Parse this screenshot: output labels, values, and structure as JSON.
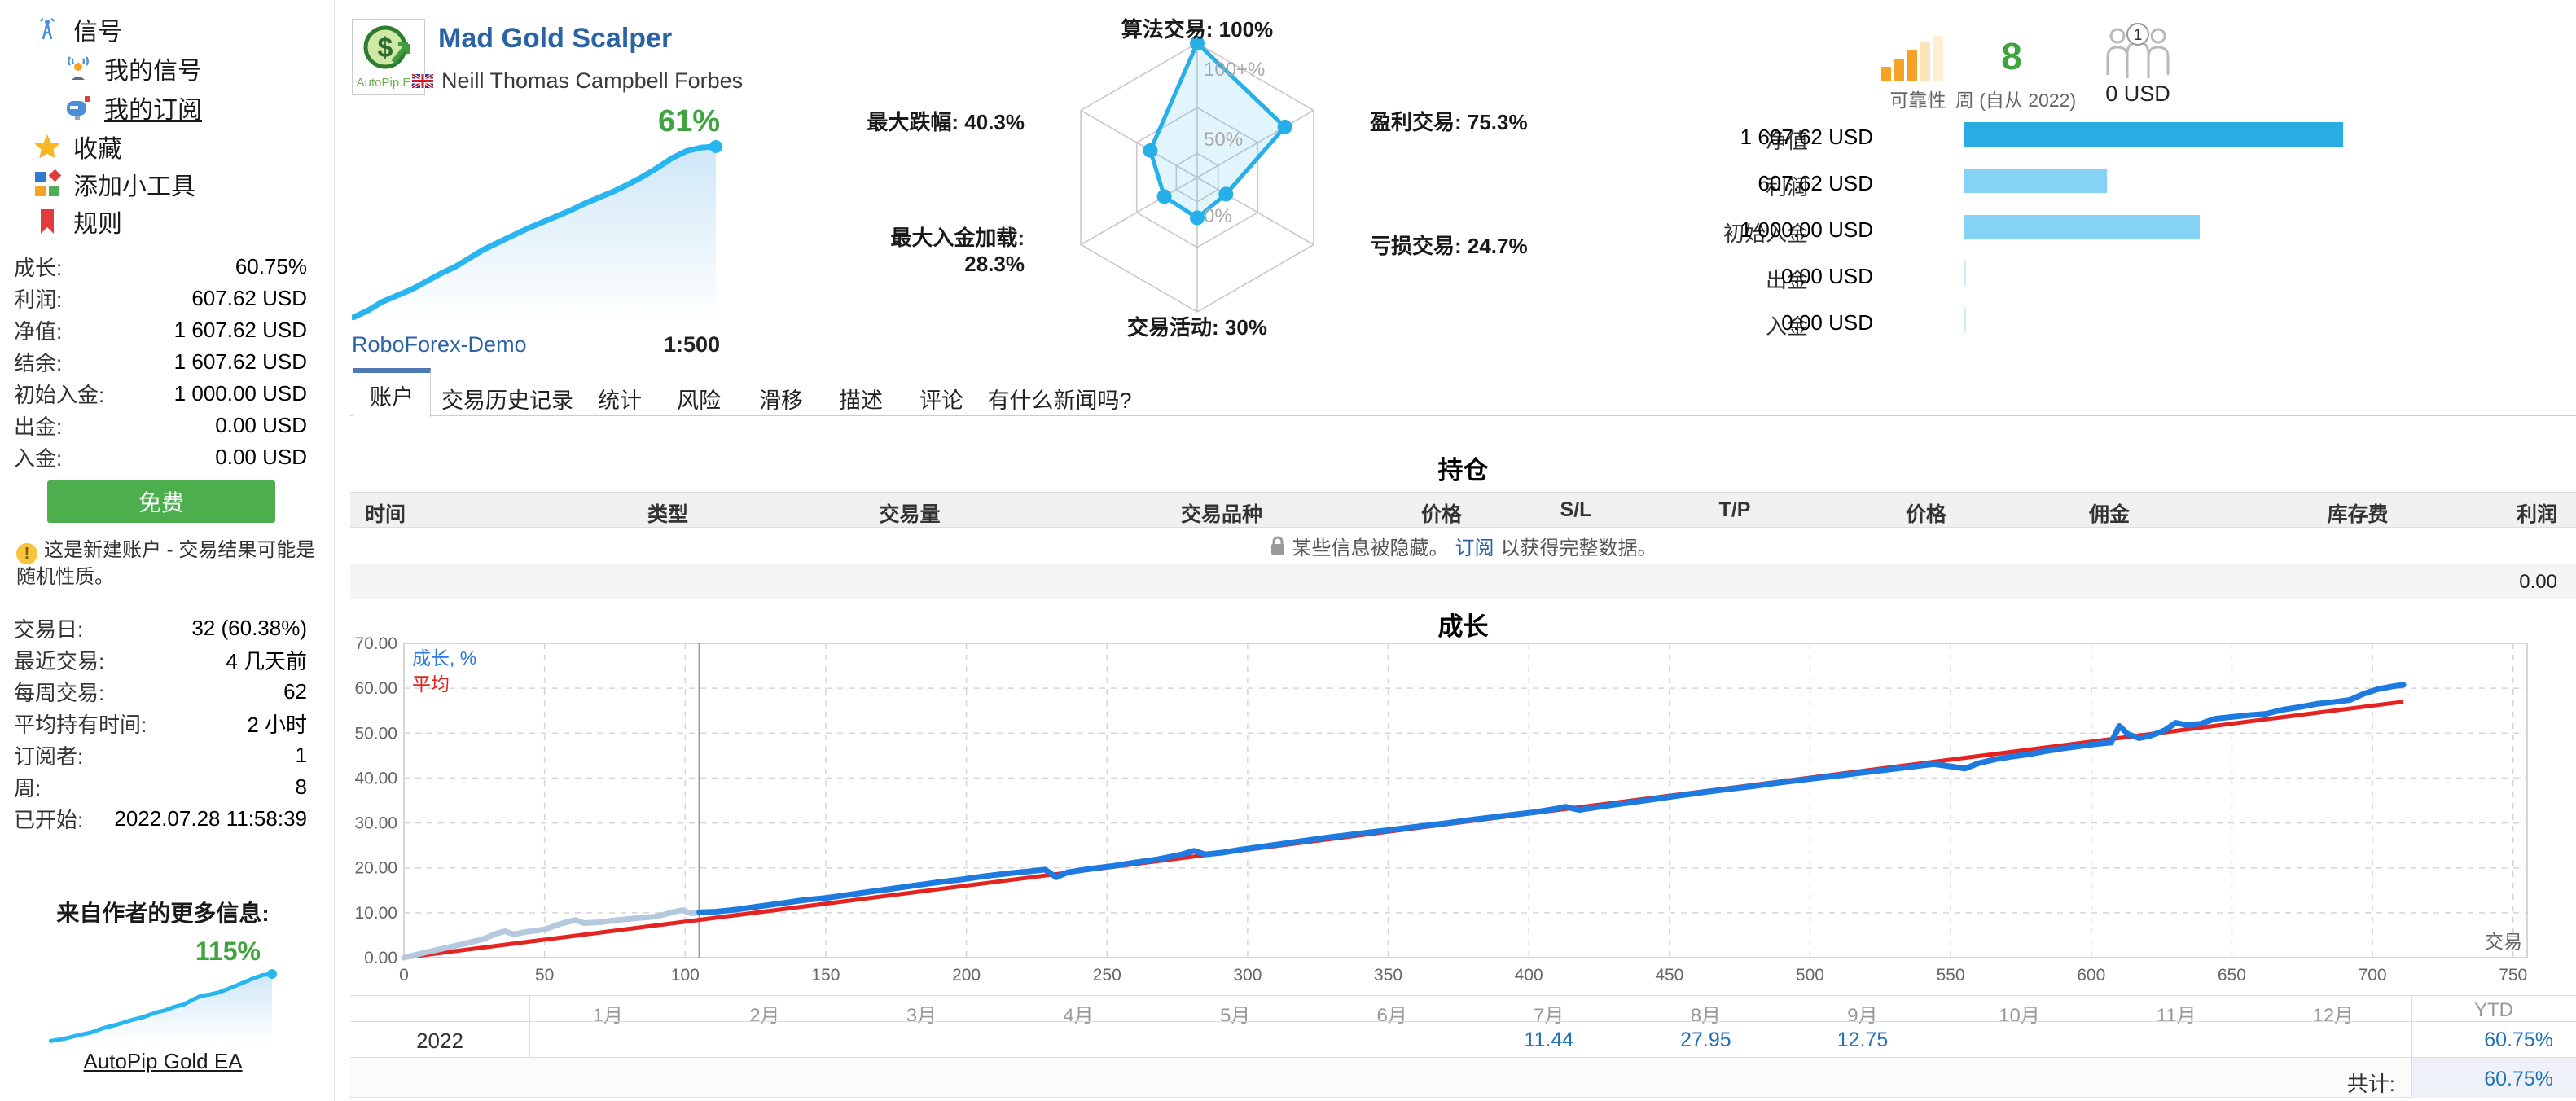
{
  "colors": {
    "link_blue": "#2c63a5",
    "green": "#3fa33f",
    "button_green": "#4cae4c",
    "chart_blue": "#1d7ae0",
    "chart_pre_blue": "#b4c9de",
    "average_red": "#e52321",
    "radar_blue": "#27b0e8",
    "bar_dark_blue": "#29abe4",
    "bar_light_blue": "#84d2f4",
    "reliability_orange": "#f5a227",
    "sparkline_blue": "#29b6f0"
  },
  "sidebar": {
    "nav": [
      {
        "label": "信号",
        "icon": "antenna-icon"
      },
      {
        "label": "我的信号",
        "icon": "my-signals-icon"
      },
      {
        "label": "我的订阅",
        "icon": "mailbox-icon",
        "active": true
      },
      {
        "label": "收藏",
        "icon": "star-icon"
      },
      {
        "label": "添加小工具",
        "icon": "widgets-icon"
      },
      {
        "label": "规则",
        "icon": "bookmark-icon"
      }
    ],
    "stats": [
      {
        "label": "成长:",
        "value": "60.75%"
      },
      {
        "label": "利润:",
        "value": "607.62 USD"
      },
      {
        "label": "净值:",
        "value": "1 607.62 USD"
      },
      {
        "label": "结余:",
        "value": "1 607.62 USD"
      },
      {
        "label": "初始入金:",
        "value": "1 000.00 USD"
      },
      {
        "label": "出金:",
        "value": "0.00 USD"
      },
      {
        "label": "入金:",
        "value": "0.00 USD"
      }
    ],
    "free_button": "免费",
    "warning": "这是新建账户 - 交易结果可能是随机性质。",
    "stats2": [
      {
        "label": "交易日:",
        "value": "32 (60.38%)"
      },
      {
        "label": "最近交易:",
        "value": "4 几天前"
      },
      {
        "label": "每周交易:",
        "value": "62"
      },
      {
        "label": "平均持有时间:",
        "value": "2 小时"
      },
      {
        "label": "订阅者:",
        "value": "1"
      },
      {
        "label": "周:",
        "value": "8"
      },
      {
        "label": "已开始:",
        "value": "2022.07.28 11:58:39"
      }
    ],
    "more_from_author": {
      "title": "来自作者的更多信息:",
      "percent": "115%",
      "link": "AutoPip Gold EA"
    }
  },
  "header": {
    "logo_text": "AutoPip EA",
    "title": "Mad Gold Scalper",
    "author": "Neill Thomas Campbell Forbes",
    "growth_percent": "61%",
    "broker": "RoboForex-Demo",
    "leverage": "1:500"
  },
  "summary": {
    "reliability_label": "可靠性",
    "weeks_value": "8",
    "weeks_label": "周 (自从 2022)",
    "subscribers_count": "1",
    "subscribers_funds": "0 USD",
    "bars": [
      {
        "label": "净值",
        "value": "1 607.62 USD",
        "frac": 1
      },
      {
        "label": "利润",
        "value": "607.62 USD",
        "frac": 0.378
      },
      {
        "label": "初始入金",
        "value": "1 000.00 USD",
        "frac": 0.622
      },
      {
        "label": "出金",
        "value": "0.00 USD",
        "frac": 0.006
      },
      {
        "label": "入金",
        "value": "0.00 USD",
        "frac": 0.006
      }
    ]
  },
  "tabs": [
    "账户",
    "交易历史记录",
    "统计",
    "风险",
    "滑移",
    "描述",
    "评论",
    "有什么新闻吗?"
  ],
  "positions": {
    "title": "持仓",
    "columns": [
      "时间",
      "类型",
      "交易量",
      "交易品种",
      "价格",
      "S/L",
      "T/P",
      "价格",
      "佣金",
      "库存费",
      "利润"
    ],
    "hidden_note_pre": "某些信息被隐藏。",
    "hidden_note_link": "订阅",
    "hidden_note_post": "以获得完整数据。",
    "total": "0.00"
  },
  "growth_section": {
    "title": "成长",
    "legend_growth": "成长, %",
    "legend_average": "平均",
    "x_axis_label": "交易"
  },
  "monthly": {
    "months": [
      "1月",
      "2月",
      "3月",
      "4月",
      "5月",
      "6月",
      "7月",
      "8月",
      "9月",
      "10月",
      "11月",
      "12月",
      "YTD"
    ],
    "year": "2022",
    "values_by_month": {
      "7月": "11.44",
      "8月": "27.95",
      "9月": "12.75",
      "YTD": "60.75%"
    },
    "total_label": "共计:",
    "total_value": "60.75%"
  },
  "chart_data": [
    {
      "id": "radar",
      "type": "radar",
      "axes": [
        {
          "label": "算法交易: 100%",
          "value": 100
        },
        {
          "label": "盈利交易: 75.3%",
          "value": 75.3
        },
        {
          "label": "亏损交易: 24.7%",
          "value": 24.7
        },
        {
          "label": "交易活动: 30%",
          "value": 30
        },
        {
          "label": "最大入金加载: 28.3%",
          "value": 28.3
        },
        {
          "label": "最大跌幅: 40.3%",
          "value": 40.3
        }
      ],
      "ring_labels": [
        "100+%",
        "50%",
        "0%"
      ]
    },
    {
      "id": "growth",
      "type": "line",
      "title": "成长",
      "xlabel": "交易",
      "xlim": [
        0,
        755
      ],
      "ylim": [
        0,
        70
      ],
      "x_ticks": [
        0,
        50,
        100,
        150,
        200,
        250,
        300,
        350,
        400,
        450,
        500,
        550,
        600,
        650,
        700,
        750
      ],
      "y_ticks": [
        "70.00",
        "60.00",
        "50.00",
        "40.00",
        "30.00",
        "20.00",
        "10.00",
        "0.00"
      ],
      "subscription_marker_x": 105,
      "series": [
        {
          "name": "成长, %",
          "points": [
            [
              0,
              0
            ],
            [
              8,
              1.2
            ],
            [
              15,
              2.2
            ],
            [
              22,
              3.2
            ],
            [
              28,
              4.1
            ],
            [
              33,
              5.4
            ],
            [
              36,
              5.9
            ],
            [
              39,
              5.2
            ],
            [
              44,
              5.8
            ],
            [
              50,
              6.3
            ],
            [
              56,
              7.6
            ],
            [
              61,
              8.4
            ],
            [
              64,
              7.7
            ],
            [
              70,
              7.9
            ],
            [
              76,
              8.4
            ],
            [
              83,
              8.8
            ],
            [
              90,
              9.2
            ],
            [
              96,
              10.2
            ],
            [
              99,
              10.6
            ],
            [
              102,
              9.9
            ],
            [
              105,
              10.1
            ],
            [
              110,
              10.2
            ],
            [
              118,
              10.7
            ],
            [
              126,
              11.4
            ],
            [
              134,
              12.1
            ],
            [
              142,
              12.8
            ],
            [
              150,
              13.3
            ],
            [
              158,
              14
            ],
            [
              166,
              14.7
            ],
            [
              174,
              15.4
            ],
            [
              182,
              16.1
            ],
            [
              190,
              16.8
            ],
            [
              198,
              17.4
            ],
            [
              206,
              18.1
            ],
            [
              214,
              18.7
            ],
            [
              222,
              19.2
            ],
            [
              228,
              19.6
            ],
            [
              232,
              17.9
            ],
            [
              236,
              19
            ],
            [
              244,
              19.8
            ],
            [
              252,
              20.4
            ],
            [
              260,
              21.2
            ],
            [
              268,
              21.9
            ],
            [
              276,
              22.9
            ],
            [
              281,
              23.8
            ],
            [
              285,
              23
            ],
            [
              291,
              23.4
            ],
            [
              298,
              24.1
            ],
            [
              306,
              24.8
            ],
            [
              314,
              25.5
            ],
            [
              322,
              26.2
            ],
            [
              330,
              26.9
            ],
            [
              338,
              27.5
            ],
            [
              346,
              28.1
            ],
            [
              354,
              28.7
            ],
            [
              362,
              29.3
            ],
            [
              370,
              29.9
            ],
            [
              378,
              30.6
            ],
            [
              386,
              31.2
            ],
            [
              394,
              31.8
            ],
            [
              402,
              32.4
            ],
            [
              409,
              33.1
            ],
            [
              413,
              33.6
            ],
            [
              418,
              32.9
            ],
            [
              424,
              33.5
            ],
            [
              432,
              34.2
            ],
            [
              440,
              34.9
            ],
            [
              448,
              35.6
            ],
            [
              456,
              36.3
            ],
            [
              464,
              37
            ],
            [
              472,
              37.6
            ],
            [
              480,
              38.2
            ],
            [
              488,
              38.9
            ],
            [
              496,
              39.5
            ],
            [
              504,
              40.1
            ],
            [
              512,
              40.7
            ],
            [
              520,
              41.3
            ],
            [
              528,
              41.9
            ],
            [
              536,
              42.5
            ],
            [
              544,
              43.1
            ],
            [
              550,
              42.6
            ],
            [
              555,
              42.1
            ],
            [
              560,
              43.3
            ],
            [
              566,
              44.2
            ],
            [
              572,
              44.8
            ],
            [
              578,
              45.3
            ],
            [
              584,
              46
            ],
            [
              590,
              46.6
            ],
            [
              596,
              47.1
            ],
            [
              602,
              47.6
            ],
            [
              607,
              47.9
            ],
            [
              610,
              51.6
            ],
            [
              613,
              49.8
            ],
            [
              617,
              48.9
            ],
            [
              621,
              49.4
            ],
            [
              626,
              50.6
            ],
            [
              630,
              52.3
            ],
            [
              634,
              51.8
            ],
            [
              639,
              52.1
            ],
            [
              644,
              53.2
            ],
            [
              650,
              53.6
            ],
            [
              656,
              54
            ],
            [
              662,
              54.3
            ],
            [
              668,
              55.2
            ],
            [
              674,
              55.8
            ],
            [
              680,
              56.5
            ],
            [
              686,
              56.9
            ],
            [
              692,
              57.4
            ],
            [
              697,
              58.8
            ],
            [
              702,
              59.8
            ],
            [
              707,
              60.4
            ],
            [
              711,
              60.75
            ]
          ]
        },
        {
          "name": "平均",
          "points": [
            [
              0,
              0
            ],
            [
              711,
              57
            ]
          ]
        }
      ]
    },
    {
      "id": "header_sparkline",
      "type": "area",
      "end_label": "61%",
      "points_norm": [
        [
          0,
          0.02
        ],
        [
          0.04,
          0.06
        ],
        [
          0.08,
          0.11
        ],
        [
          0.12,
          0.145
        ],
        [
          0.16,
          0.18
        ],
        [
          0.2,
          0.225
        ],
        [
          0.24,
          0.27
        ],
        [
          0.28,
          0.31
        ],
        [
          0.32,
          0.36
        ],
        [
          0.36,
          0.41
        ],
        [
          0.4,
          0.45
        ],
        [
          0.44,
          0.49
        ],
        [
          0.48,
          0.53
        ],
        [
          0.52,
          0.565
        ],
        [
          0.56,
          0.6
        ],
        [
          0.6,
          0.635
        ],
        [
          0.64,
          0.675
        ],
        [
          0.68,
          0.71
        ],
        [
          0.72,
          0.745
        ],
        [
          0.76,
          0.785
        ],
        [
          0.8,
          0.83
        ],
        [
          0.84,
          0.88
        ],
        [
          0.88,
          0.935
        ],
        [
          0.92,
          0.975
        ],
        [
          0.96,
          0.995
        ],
        [
          1,
          1
        ]
      ]
    },
    {
      "id": "author_sparkline",
      "type": "area",
      "end_label": "115%",
      "points_norm": [
        [
          0,
          0.02
        ],
        [
          0.06,
          0.05
        ],
        [
          0.12,
          0.1
        ],
        [
          0.18,
          0.14
        ],
        [
          0.24,
          0.21
        ],
        [
          0.3,
          0.26
        ],
        [
          0.36,
          0.32
        ],
        [
          0.42,
          0.37
        ],
        [
          0.48,
          0.44
        ],
        [
          0.52,
          0.47
        ],
        [
          0.56,
          0.52
        ],
        [
          0.6,
          0.55
        ],
        [
          0.64,
          0.62
        ],
        [
          0.68,
          0.68
        ],
        [
          0.72,
          0.7
        ],
        [
          0.76,
          0.73
        ],
        [
          0.8,
          0.78
        ],
        [
          0.86,
          0.86
        ],
        [
          0.92,
          0.94
        ],
        [
          0.96,
          0.985
        ],
        [
          1,
          1
        ]
      ]
    }
  ]
}
